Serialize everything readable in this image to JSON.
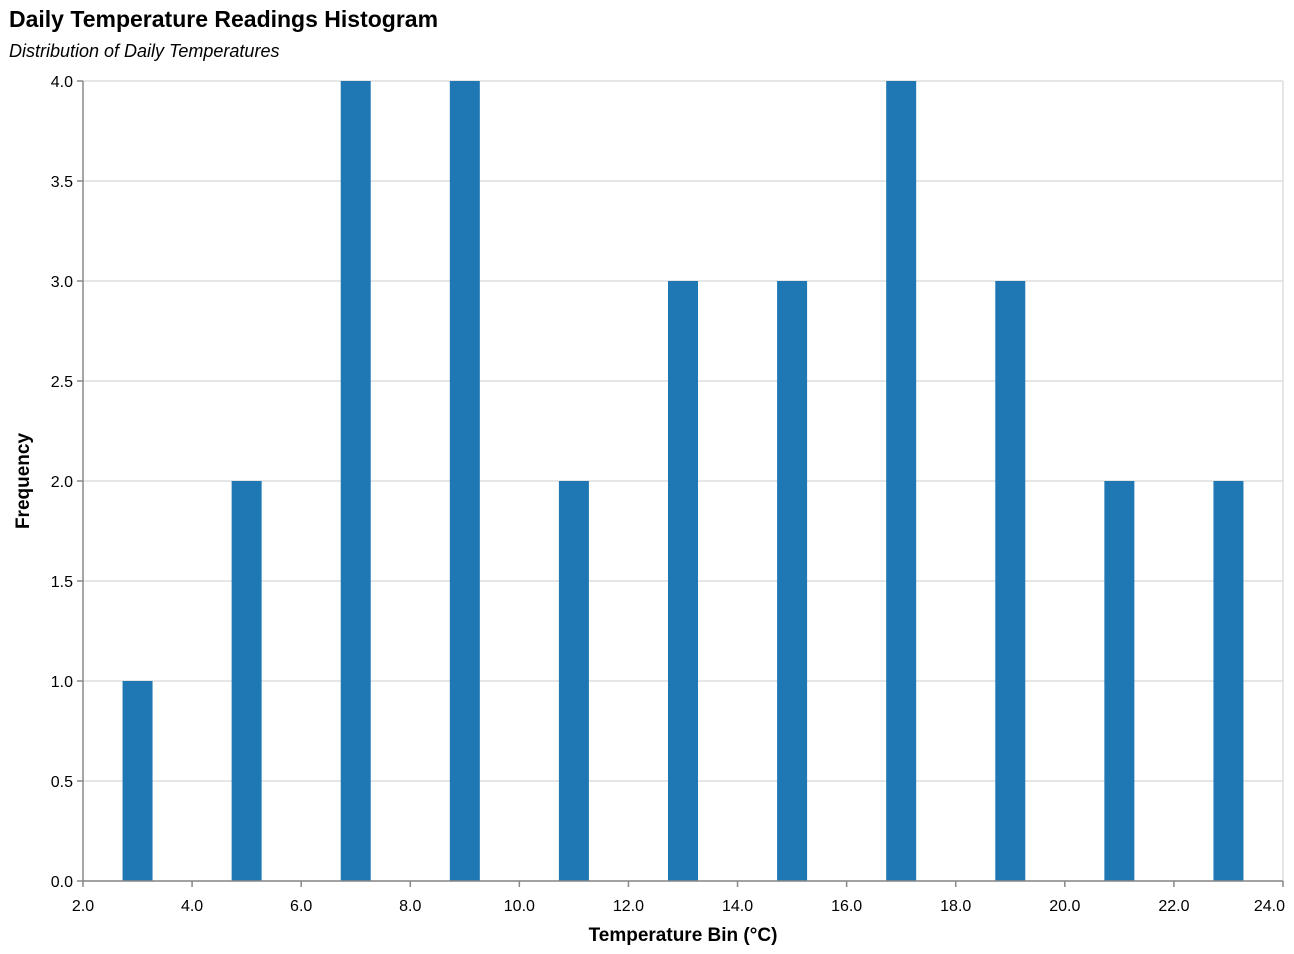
{
  "chart_data": {
    "type": "bar",
    "title": "Daily Temperature Readings Histogram",
    "subtitle": "Distribution of Daily Temperatures",
    "xlabel": "Temperature Bin (°C)",
    "ylabel": "Frequency",
    "x": [
      3,
      5,
      7,
      9,
      11,
      13,
      15,
      17,
      19,
      21,
      23
    ],
    "values": [
      1,
      2,
      4,
      4,
      2,
      3,
      3,
      4,
      3,
      2,
      2
    ],
    "xlim": [
      2,
      24
    ],
    "ylim": [
      0,
      4
    ],
    "bin_width": 0.55,
    "x_ticks": [
      "2.0",
      "4.0",
      "6.0",
      "8.0",
      "10.0",
      "12.0",
      "14.0",
      "16.0",
      "18.0",
      "20.0",
      "22.0",
      "24.0"
    ],
    "y_ticks": [
      "0.0",
      "0.5",
      "1.0",
      "1.5",
      "2.0",
      "2.5",
      "3.0",
      "3.5",
      "4.0"
    ],
    "grid": true,
    "bar_color": "#1f77b4"
  }
}
